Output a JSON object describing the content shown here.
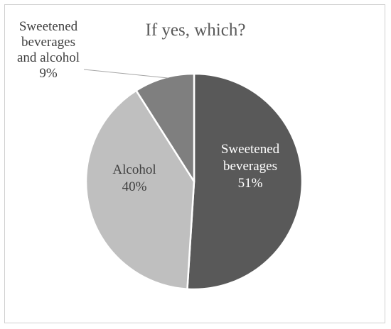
{
  "chart_data": {
    "type": "pie",
    "title": "If yes, which?",
    "slices": [
      {
        "name": "Sweetened beverages",
        "value": 51,
        "label_lines": [
          "Sweetened",
          "beverages",
          "51%"
        ],
        "color": "#595959",
        "label_color": "#ffffff"
      },
      {
        "name": "Alcohol",
        "value": 40,
        "label_lines": [
          "Alcohol",
          "40%"
        ],
        "color": "#bfbfbf",
        "label_color": "#404040"
      },
      {
        "name": "Sweetened beverages and alcohol",
        "value": 9,
        "label_lines": [
          "Sweetened",
          "beverages",
          "and alcohol",
          "9%"
        ],
        "color": "#7f7f7f",
        "label_color": "#404040"
      }
    ],
    "legend": "none"
  }
}
